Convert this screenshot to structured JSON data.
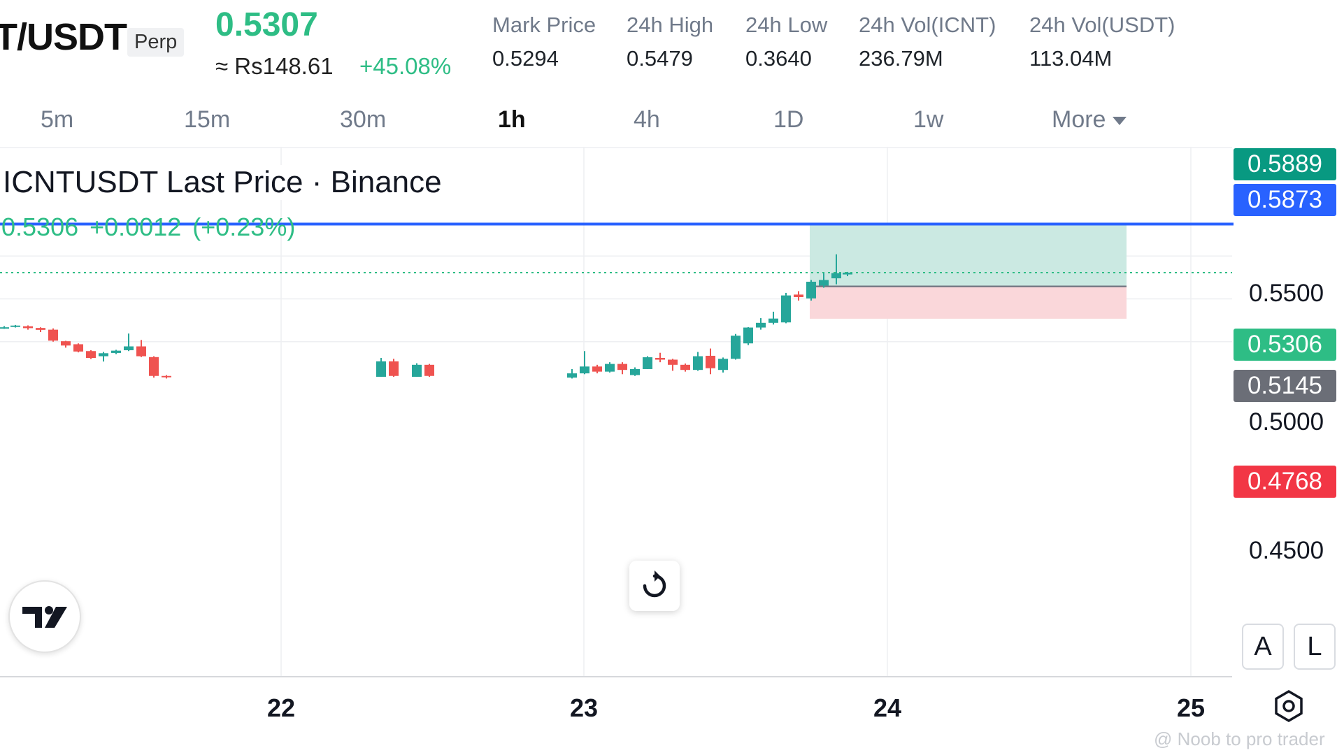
{
  "header": {
    "pair": "T/USDT",
    "contract_badge": "Perp",
    "last_price": "0.5307",
    "approx_local_price": "≈ Rs148.61",
    "change_percent": "+45.08%",
    "stats": [
      {
        "label": "Mark Price",
        "value": "0.5294"
      },
      {
        "label": "24h High",
        "value": "0.5479"
      },
      {
        "label": "24h Low",
        "value": "0.3640"
      },
      {
        "label": "24h Vol(ICNT)",
        "value": "236.79M"
      },
      {
        "label": "24h Vol(USDT)",
        "value": "113.04M"
      }
    ]
  },
  "timeframes": {
    "items": [
      "5m",
      "15m",
      "30m",
      "1h",
      "4h",
      "1D",
      "1w"
    ],
    "active": "1h",
    "more_label": "More"
  },
  "chart_data": {
    "type": "candlestick",
    "title": "ICNTUSDT Last Price · Binance",
    "legend": {
      "price": "0.5306",
      "change": "+0.0012",
      "change_percent": "(+0.23%)"
    },
    "y_ticks": [
      "0.5500",
      "0.5000",
      "0.4500"
    ],
    "x_ticks": [
      "22",
      "23",
      "24",
      "25"
    ],
    "price_tags": [
      {
        "value": "0.5889",
        "color": "#089981",
        "role": "position-target"
      },
      {
        "value": "0.5873",
        "color": "#2962ff",
        "role": "horizontal-line"
      },
      {
        "value": "0.5306",
        "color": "#2ebd85",
        "role": "last-price"
      },
      {
        "value": "0.5145",
        "color": "#6b6e77",
        "role": "position-entry"
      },
      {
        "value": "0.4768",
        "color": "#f23645",
        "role": "position-stop"
      }
    ],
    "horizontal_line": 0.5873,
    "long_position": {
      "target": 0.5889,
      "entry": 0.5145,
      "stop": 0.4768
    },
    "colors": {
      "up": "#26a69a",
      "down": "#ef5350",
      "line": "#2962ff",
      "profit_zone": "#cbe9e2",
      "loss_zone": "#fad7da"
    }
  },
  "widgets": {
    "logo_text": "TV",
    "autoscale_label": "A",
    "log_label": "L",
    "watermark": "@ Noob to pro trader"
  }
}
